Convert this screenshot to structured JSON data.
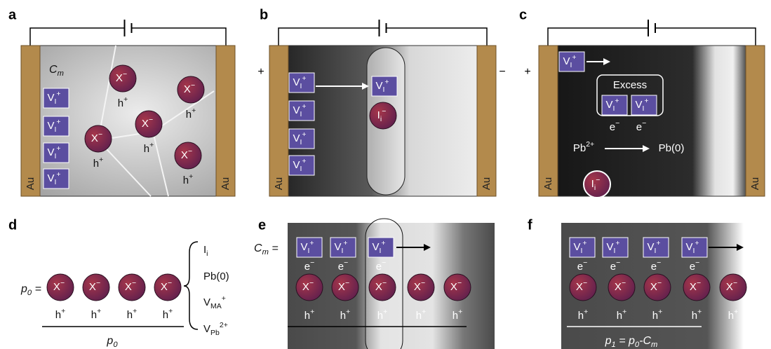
{
  "panels": [
    {
      "label": "a",
      "electrodes": [
        "Au",
        "Au"
      ],
      "capacitance": {
        "base": "C",
        "sub": "m"
      },
      "vacancies": [
        {
          "base": "V",
          "sub": "I",
          "sup": "+"
        },
        {
          "base": "V",
          "sub": "I",
          "sup": "+"
        },
        {
          "base": "V",
          "sub": "I",
          "sup": "+"
        },
        {
          "base": "V",
          "sub": "I",
          "sup": "+"
        }
      ],
      "ions": [
        {
          "base": "X",
          "sup": "−"
        },
        {
          "base": "X",
          "sup": "−"
        },
        {
          "base": "X",
          "sup": "−"
        },
        {
          "base": "X",
          "sup": "−"
        },
        {
          "base": "X",
          "sup": "−"
        }
      ],
      "holes": [
        {
          "base": "h",
          "sup": "+"
        },
        {
          "base": "h",
          "sup": "+"
        },
        {
          "base": "h",
          "sup": "+"
        },
        {
          "base": "h",
          "sup": "+"
        },
        {
          "base": "h",
          "sup": "+"
        }
      ]
    },
    {
      "label": "b",
      "electrodes": [
        "Au",
        "Au"
      ],
      "polarity": [
        "+",
        "−"
      ],
      "vacancies": [
        {
          "base": "V",
          "sub": "I",
          "sup": "+"
        },
        {
          "base": "V",
          "sub": "I",
          "sup": "+"
        },
        {
          "base": "V",
          "sub": "I",
          "sup": "+"
        },
        {
          "base": "V",
          "sub": "I",
          "sup": "+"
        },
        {
          "base": "V",
          "sub": "I",
          "sup": "+"
        }
      ],
      "ions": [
        {
          "base": "I",
          "sub": "i",
          "sup": "−"
        }
      ]
    },
    {
      "label": "c",
      "electrodes": [
        "Au",
        "Au"
      ],
      "polarity": [
        "+"
      ],
      "vacancies": [
        {
          "base": "V",
          "sub": "I",
          "sup": "+"
        },
        {
          "base": "V",
          "sub": "I",
          "sup": "+"
        },
        {
          "base": "V",
          "sub": "I",
          "sup": "+"
        }
      ],
      "excess": "Excess",
      "electrons": [
        {
          "base": "e",
          "sup": "−"
        },
        {
          "base": "e",
          "sup": "−"
        }
      ],
      "reaction": [
        {
          "base": "Pb",
          "sup": "2+"
        },
        {
          "base": "Pb(0)"
        }
      ],
      "ions": [
        {
          "base": "I",
          "sub": "i",
          "sup": "−"
        }
      ]
    },
    {
      "label": "d",
      "lhs": [
        {
          "base": "p",
          "sub": "0"
        },
        {
          "base": " ="
        }
      ],
      "ions": [
        {
          "base": "X",
          "sup": "−"
        },
        {
          "base": "X",
          "sup": "−"
        },
        {
          "base": "X",
          "sup": "−"
        },
        {
          "base": "X",
          "sup": "−"
        }
      ],
      "holes": [
        {
          "base": "h",
          "sup": "+"
        },
        {
          "base": "h",
          "sup": "+"
        },
        {
          "base": "h",
          "sup": "+"
        },
        {
          "base": "h",
          "sup": "+"
        }
      ],
      "total": [
        {
          "base": "p",
          "sub": "0"
        }
      ],
      "defects": [
        {
          "base": "I",
          "sub": "i"
        },
        {
          "base": "Pb(0)"
        },
        {
          "base": "V",
          "sub": "MA",
          "sup": "+"
        },
        {
          "base": "V",
          "sub": "Pb",
          "sup": "2+"
        }
      ]
    },
    {
      "label": "e",
      "lhs": [
        {
          "base": "C",
          "sub": "m"
        },
        {
          "base": " ="
        }
      ],
      "vacancies": [
        {
          "base": "V",
          "sub": "I",
          "sup": "+"
        },
        {
          "base": "V",
          "sub": "I",
          "sup": "+"
        },
        {
          "base": "V",
          "sub": "I",
          "sup": "+"
        }
      ],
      "electrons": [
        {
          "base": "e",
          "sup": "−"
        },
        {
          "base": "e",
          "sup": "−"
        },
        {
          "base": "e",
          "sup": "−"
        }
      ],
      "ions": [
        {
          "base": "X",
          "sup": "−"
        },
        {
          "base": "X",
          "sup": "−"
        },
        {
          "base": "X",
          "sup": "−"
        },
        {
          "base": "X",
          "sup": "−"
        },
        {
          "base": "X",
          "sup": "−"
        }
      ],
      "holes": [
        {
          "base": "h",
          "sup": "+"
        },
        {
          "base": "h",
          "sup": "+"
        },
        {
          "base": "h",
          "sup": "+"
        },
        {
          "base": "h",
          "sup": "+"
        },
        {
          "base": "h",
          "sup": "+"
        }
      ]
    },
    {
      "label": "f",
      "vacancies": [
        {
          "base": "V",
          "sub": "I",
          "sup": "+"
        },
        {
          "base": "V",
          "sub": "I",
          "sup": "+"
        },
        {
          "base": "V",
          "sub": "I",
          "sup": "+"
        },
        {
          "base": "V",
          "sub": "I",
          "sup": "+"
        }
      ],
      "electrons": [
        {
          "base": "e",
          "sup": "−"
        },
        {
          "base": "e",
          "sup": "−"
        },
        {
          "base": "e",
          "sup": "−"
        },
        {
          "base": "e",
          "sup": "−"
        }
      ],
      "ions": [
        {
          "base": "X",
          "sup": "−"
        },
        {
          "base": "X",
          "sup": "−"
        },
        {
          "base": "X",
          "sup": "−"
        },
        {
          "base": "X",
          "sup": "−"
        },
        {
          "base": "X",
          "sup": "−"
        }
      ],
      "holes": [
        {
          "base": "h",
          "sup": "+"
        },
        {
          "base": "h",
          "sup": "+"
        },
        {
          "base": "h",
          "sup": "+"
        },
        {
          "base": "h",
          "sup": "+"
        },
        {
          "base": "h",
          "sup": "+"
        }
      ],
      "total": [
        {
          "base": "p",
          "sub": "1"
        },
        {
          "base": " = p",
          "sub": "0"
        },
        {
          "base": "-C",
          "sub": "m"
        }
      ]
    }
  ]
}
